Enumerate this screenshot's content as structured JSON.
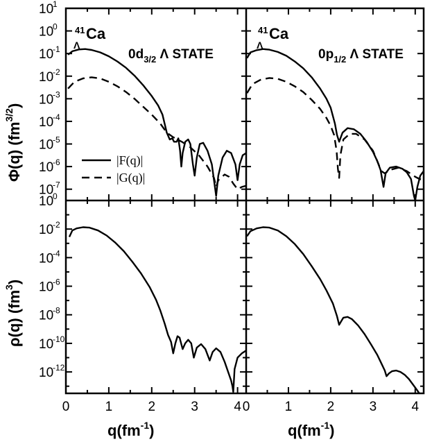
{
  "chart_data": {
    "type": "line",
    "title": "",
    "x_label": {
      "main": "q(fm",
      "exponent": "-1",
      "close": ")"
    },
    "y_label_top": {
      "main": "Φ(q) (fm",
      "exponent": "3/2",
      "close": ")"
    },
    "y_label_bottom": {
      "main": "ρ(q) (fm",
      "exponent": "3",
      "close": ")"
    },
    "xlim": [
      0,
      4.2
    ],
    "x_ticks": [
      "0",
      "1",
      "2",
      "3",
      "4"
    ],
    "top_ylim_log10": [
      -7.5,
      1
    ],
    "top_y_ticks": [
      {
        "base": "10",
        "exp": "1"
      },
      {
        "base": "10",
        "exp": "0"
      },
      {
        "base": "10",
        "exp": "-1"
      },
      {
        "base": "10",
        "exp": "-2"
      },
      {
        "base": "10",
        "exp": "-3"
      },
      {
        "base": "10",
        "exp": "-4"
      },
      {
        "base": "10",
        "exp": "-5"
      },
      {
        "base": "10",
        "exp": "-6"
      },
      {
        "base": "10",
        "exp": "-7"
      }
    ],
    "bottom_ylim_log10": [
      -13.5,
      0
    ],
    "bottom_y_ticks": [
      {
        "base": "10",
        "exp": "0"
      },
      {
        "base": "10",
        "exp": "-2"
      },
      {
        "base": "10",
        "exp": "-4"
      },
      {
        "base": "10",
        "exp": "-6"
      },
      {
        "base": "10",
        "exp": "-8"
      },
      {
        "base": "10",
        "exp": "-10"
      },
      {
        "base": "10",
        "exp": "-12"
      }
    ],
    "legend": [
      {
        "label": "|F(q)|",
        "style": "solid"
      },
      {
        "label": "|G(q)|",
        "style": "dashed"
      }
    ],
    "panels": [
      {
        "id": "top-left",
        "nucleus": {
          "mass": "41",
          "sub": "Λ",
          "symbol": "Ca"
        },
        "state": {
          "prefix": "0d",
          "sub": "3/2",
          "suffix": " Λ STATE"
        },
        "series": [
          {
            "name": "|F(q)|",
            "style": "solid",
            "points": [
              [
                0.05,
                -1.05
              ],
              [
                0.15,
                -0.9
              ],
              [
                0.3,
                -0.82
              ],
              [
                0.45,
                -0.8
              ],
              [
                0.6,
                -0.84
              ],
              [
                0.8,
                -0.95
              ],
              [
                1.0,
                -1.12
              ],
              [
                1.2,
                -1.35
              ],
              [
                1.4,
                -1.63
              ],
              [
                1.6,
                -1.98
              ],
              [
                1.8,
                -2.4
              ],
              [
                2.0,
                -2.88
              ],
              [
                2.15,
                -3.3
              ],
              [
                2.25,
                -3.7
              ],
              [
                2.35,
                -4.5
              ],
              [
                2.42,
                -4.8
              ],
              [
                2.48,
                -4.75
              ],
              [
                2.52,
                -4.9
              ],
              [
                2.58,
                -4.9
              ],
              [
                2.62,
                -4.75
              ],
              [
                2.66,
                -5.3
              ],
              [
                2.69,
                -6.0
              ],
              [
                2.72,
                -5.4
              ],
              [
                2.78,
                -4.9
              ],
              [
                2.85,
                -4.8
              ],
              [
                2.9,
                -5.0
              ],
              [
                2.96,
                -5.9
              ],
              [
                3.0,
                -6.4
              ],
              [
                3.05,
                -5.6
              ],
              [
                3.12,
                -5.0
              ],
              [
                3.2,
                -4.95
              ],
              [
                3.3,
                -5.3
              ],
              [
                3.4,
                -5.9
              ],
              [
                3.45,
                -6.6
              ],
              [
                3.5,
                -7.3
              ],
              [
                3.55,
                -6.4
              ],
              [
                3.65,
                -5.6
              ],
              [
                3.75,
                -5.3
              ],
              [
                3.85,
                -5.4
              ],
              [
                3.95,
                -5.9
              ],
              [
                4.0,
                -6.6
              ],
              [
                4.05,
                -5.9
              ],
              [
                4.12,
                -5.5
              ],
              [
                4.2,
                -5.4
              ]
            ]
          },
          {
            "name": "|G(q)|",
            "style": "dashed",
            "points": [
              [
                0.05,
                -2.55
              ],
              [
                0.2,
                -2.25
              ],
              [
                0.4,
                -2.1
              ],
              [
                0.6,
                -2.05
              ],
              [
                0.8,
                -2.1
              ],
              [
                1.0,
                -2.25
              ],
              [
                1.2,
                -2.45
              ],
              [
                1.4,
                -2.7
              ],
              [
                1.6,
                -3.0
              ],
              [
                1.8,
                -3.35
              ],
              [
                2.0,
                -3.7
              ],
              [
                2.2,
                -4.1
              ],
              [
                2.35,
                -4.5
              ],
              [
                2.5,
                -4.7
              ],
              [
                2.7,
                -4.9
              ],
              [
                2.9,
                -5.15
              ],
              [
                3.1,
                -5.5
              ],
              [
                3.3,
                -6.0
              ],
              [
                3.45,
                -6.5
              ],
              [
                3.5,
                -6.9
              ],
              [
                3.55,
                -6.6
              ],
              [
                3.7,
                -6.35
              ],
              [
                3.8,
                -6.45
              ],
              [
                3.9,
                -6.75
              ],
              [
                4.0,
                -7.0
              ],
              [
                4.1,
                -6.9
              ],
              [
                4.2,
                -6.85
              ]
            ]
          }
        ]
      },
      {
        "id": "top-right",
        "nucleus": {
          "mass": "41",
          "sub": "Λ",
          "symbol": "Ca"
        },
        "state": {
          "prefix": "0p",
          "sub": "1/2",
          "suffix": " Λ STATE"
        },
        "series": [
          {
            "name": "|F(q)|",
            "style": "solid",
            "points": [
              [
                0.02,
                -1.2
              ],
              [
                0.1,
                -0.95
              ],
              [
                0.25,
                -0.85
              ],
              [
                0.4,
                -0.8
              ],
              [
                0.55,
                -0.83
              ],
              [
                0.75,
                -0.93
              ],
              [
                0.95,
                -1.1
              ],
              [
                1.15,
                -1.35
              ],
              [
                1.35,
                -1.65
              ],
              [
                1.55,
                -2.05
              ],
              [
                1.75,
                -2.55
              ],
              [
                1.9,
                -3.0
              ],
              [
                2.0,
                -3.4
              ],
              [
                2.1,
                -4.1
              ],
              [
                2.15,
                -4.6
              ],
              [
                2.2,
                -4.9
              ],
              [
                2.28,
                -4.5
              ],
              [
                2.4,
                -4.3
              ],
              [
                2.55,
                -4.35
              ],
              [
                2.7,
                -4.55
              ],
              [
                2.85,
                -4.9
              ],
              [
                3.0,
                -5.35
              ],
              [
                3.1,
                -5.75
              ],
              [
                3.18,
                -6.15
              ],
              [
                3.25,
                -6.9
              ],
              [
                3.3,
                -6.3
              ],
              [
                3.4,
                -6.05
              ],
              [
                3.55,
                -6.0
              ],
              [
                3.7,
                -6.1
              ],
              [
                3.8,
                -6.25
              ],
              [
                3.9,
                -6.55
              ],
              [
                3.97,
                -7.3
              ],
              [
                4.0,
                -7.5
              ],
              [
                4.05,
                -6.9
              ],
              [
                4.12,
                -6.4
              ],
              [
                4.2,
                -6.2
              ]
            ]
          },
          {
            "name": "|G(q)|",
            "style": "dashed",
            "points": [
              [
                0.02,
                -2.75
              ],
              [
                0.15,
                -2.35
              ],
              [
                0.35,
                -2.15
              ],
              [
                0.55,
                -2.08
              ],
              [
                0.75,
                -2.12
              ],
              [
                0.95,
                -2.25
              ],
              [
                1.15,
                -2.45
              ],
              [
                1.35,
                -2.7
              ],
              [
                1.55,
                -3.05
              ],
              [
                1.75,
                -3.45
              ],
              [
                1.9,
                -3.85
              ],
              [
                2.0,
                -4.2
              ],
              [
                2.08,
                -4.6
              ],
              [
                2.14,
                -5.3
              ],
              [
                2.17,
                -6.1
              ],
              [
                2.2,
                -6.5
              ],
              [
                2.23,
                -5.5
              ],
              [
                2.3,
                -4.8
              ],
              [
                2.45,
                -4.55
              ],
              [
                2.6,
                -4.55
              ],
              [
                2.8,
                -4.8
              ],
              [
                3.0,
                -5.3
              ],
              [
                3.1,
                -5.75
              ],
              [
                3.2,
                -6.2
              ],
              [
                3.28,
                -6.3
              ],
              [
                3.4,
                -6.15
              ],
              [
                3.6,
                -6.05
              ],
              [
                3.8,
                -6.2
              ],
              [
                4.0,
                -6.45
              ],
              [
                4.1,
                -6.55
              ],
              [
                4.2,
                -6.6
              ]
            ]
          }
        ]
      },
      {
        "id": "bottom-left",
        "series": [
          {
            "name": "ρ(q)",
            "style": "solid",
            "points": [
              [
                0.08,
                -2.55
              ],
              [
                0.15,
                -2.1
              ],
              [
                0.25,
                -1.95
              ],
              [
                0.4,
                -1.87
              ],
              [
                0.55,
                -1.9
              ],
              [
                0.75,
                -2.1
              ],
              [
                0.95,
                -2.45
              ],
              [
                1.15,
                -2.95
              ],
              [
                1.35,
                -3.55
              ],
              [
                1.55,
                -4.3
              ],
              [
                1.75,
                -5.1
              ],
              [
                1.95,
                -6.05
              ],
              [
                2.1,
                -6.95
              ],
              [
                2.2,
                -7.7
              ],
              [
                2.3,
                -8.6
              ],
              [
                2.38,
                -9.4
              ],
              [
                2.45,
                -9.9
              ],
              [
                2.5,
                -10.7
              ],
              [
                2.55,
                -10.0
              ],
              [
                2.6,
                -9.5
              ],
              [
                2.65,
                -9.6
              ],
              [
                2.72,
                -10.4
              ],
              [
                2.78,
                -10.0
              ],
              [
                2.85,
                -9.75
              ],
              [
                2.92,
                -10.0
              ],
              [
                2.98,
                -11.0
              ],
              [
                3.05,
                -10.3
              ],
              [
                3.15,
                -10.05
              ],
              [
                3.25,
                -10.4
              ],
              [
                3.35,
                -11.2
              ],
              [
                3.42,
                -10.6
              ],
              [
                3.5,
                -10.35
              ],
              [
                3.6,
                -10.6
              ],
              [
                3.7,
                -11.3
              ],
              [
                3.78,
                -12.0
              ],
              [
                3.85,
                -12.6
              ],
              [
                3.88,
                -13.0
              ],
              [
                3.9,
                -13.4
              ],
              [
                3.93,
                -11.8
              ],
              [
                4.0,
                -11.0
              ],
              [
                4.1,
                -10.7
              ],
              [
                4.2,
                -10.5
              ]
            ]
          }
        ]
      },
      {
        "id": "bottom-right",
        "series": [
          {
            "name": "ρ(q)",
            "style": "solid",
            "points": [
              [
                0.02,
                -2.5
              ],
              [
                0.1,
                -2.15
              ],
              [
                0.25,
                -1.95
              ],
              [
                0.4,
                -1.87
              ],
              [
                0.55,
                -1.9
              ],
              [
                0.75,
                -2.1
              ],
              [
                0.95,
                -2.5
              ],
              [
                1.15,
                -3.05
              ],
              [
                1.35,
                -3.75
              ],
              [
                1.55,
                -4.6
              ],
              [
                1.75,
                -5.5
              ],
              [
                1.9,
                -6.3
              ],
              [
                2.05,
                -7.2
              ],
              [
                2.15,
                -8.1
              ],
              [
                2.2,
                -8.7
              ],
              [
                2.24,
                -8.5
              ],
              [
                2.3,
                -8.2
              ],
              [
                2.4,
                -8.15
              ],
              [
                2.5,
                -8.3
              ],
              [
                2.65,
                -8.75
              ],
              [
                2.8,
                -9.35
              ],
              [
                2.95,
                -10.05
              ],
              [
                3.1,
                -10.8
              ],
              [
                3.2,
                -11.4
              ],
              [
                3.28,
                -11.9
              ],
              [
                3.32,
                -12.3
              ],
              [
                3.38,
                -12.1
              ],
              [
                3.45,
                -11.95
              ],
              [
                3.55,
                -11.9
              ],
              [
                3.65,
                -12.0
              ],
              [
                3.75,
                -12.2
              ],
              [
                3.85,
                -12.5
              ],
              [
                3.95,
                -12.9
              ],
              [
                4.05,
                -13.3
              ],
              [
                4.12,
                -13.6
              ],
              [
                4.2,
                -14.0
              ]
            ]
          }
        ]
      }
    ]
  }
}
